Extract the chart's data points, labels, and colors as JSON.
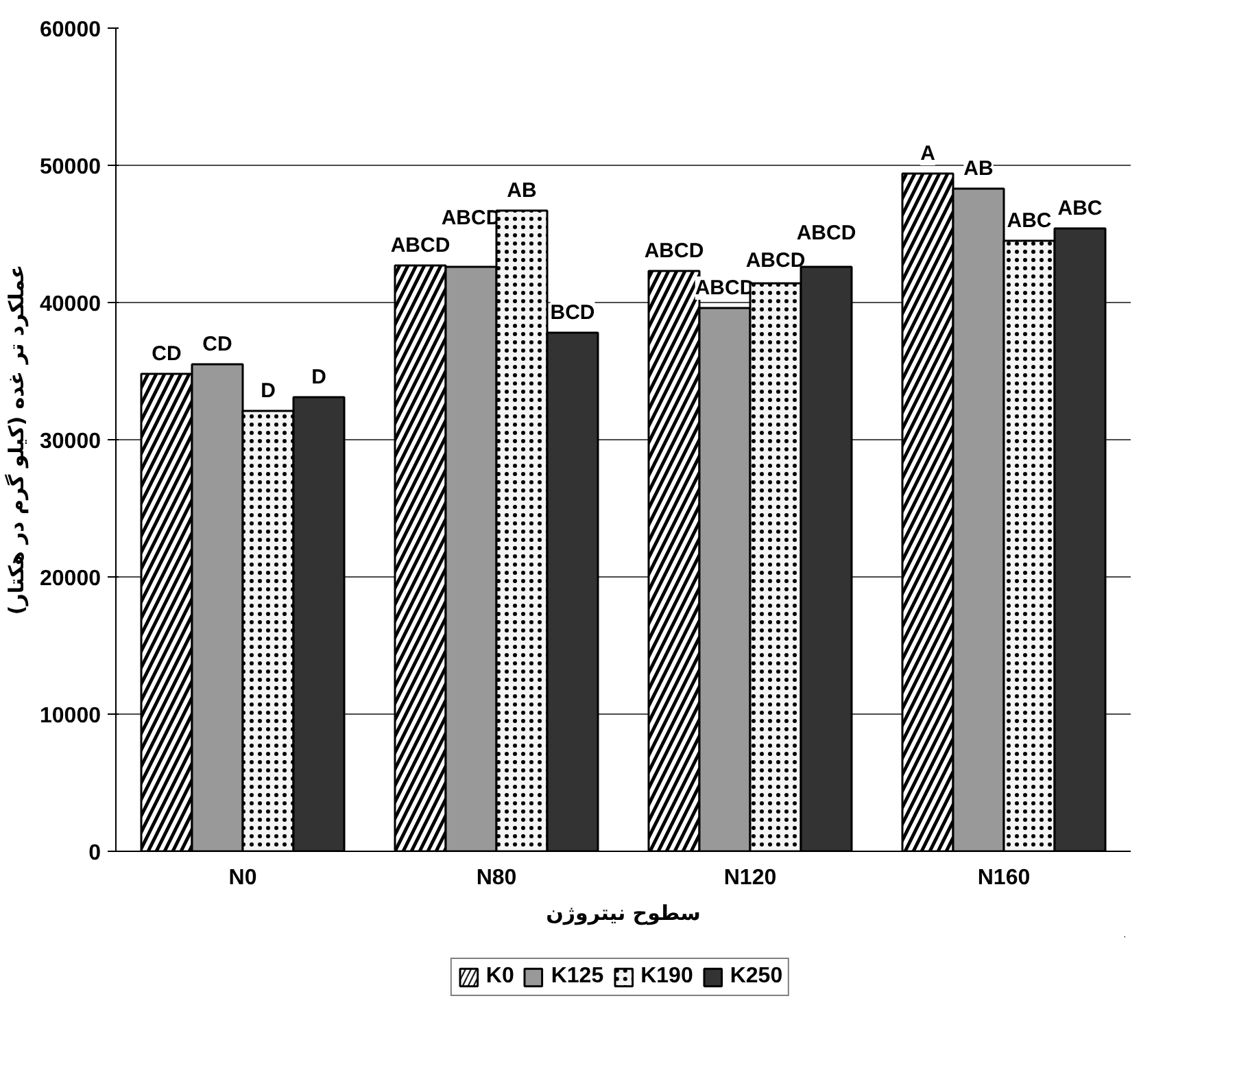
{
  "chart_data": {
    "type": "bar",
    "xlabel": "سطوح نیتروژن",
    "ylabel": "عملکرد تر غده (کیلو گرم در هکتار)",
    "categories": [
      "N0",
      "N80",
      "N120",
      "N160"
    ],
    "series": [
      {
        "name": "K0",
        "color": "#ffffff",
        "values": [
          34800,
          42700,
          42300,
          49400
        ],
        "value_labels": [
          "CD",
          "ABCD",
          "ABCD",
          "A"
        ]
      },
      {
        "name": "K125",
        "color": "#999999",
        "values": [
          35500,
          42600,
          39600,
          48300
        ],
        "value_labels": [
          "CD",
          "ABCD",
          "ABCD",
          "AB"
        ]
      },
      {
        "name": "K190",
        "color": "#f4f4f4",
        "values": [
          32100,
          46700,
          41400,
          44500
        ],
        "value_labels": [
          "D",
          "AB",
          "ABCD",
          "ABC"
        ]
      },
      {
        "name": "K250",
        "color": "#333333",
        "values": [
          33100,
          37800,
          42600,
          45400
        ],
        "value_labels": [
          "D",
          "BCD",
          "ABCD",
          "ABC"
        ]
      }
    ],
    "ylim": [
      0,
      60000
    ],
    "yticks": [
      0,
      10000,
      20000,
      30000,
      40000,
      50000,
      60000
    ],
    "grid": "y",
    "legend": "bottom"
  }
}
